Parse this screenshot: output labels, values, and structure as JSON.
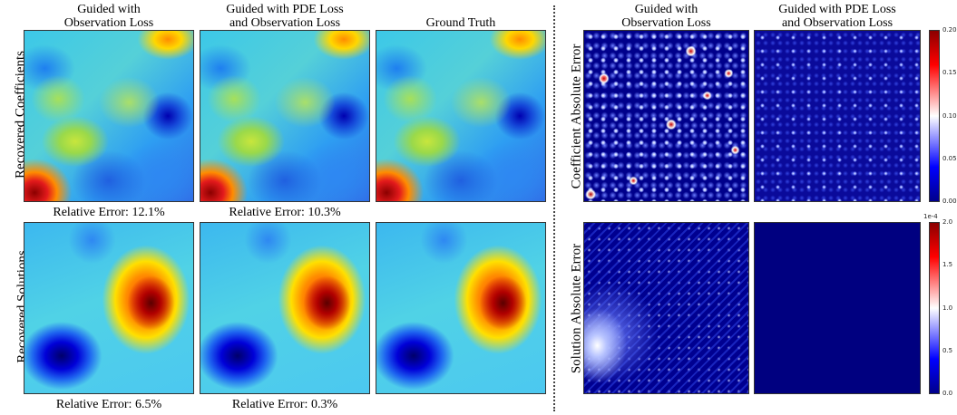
{
  "left_columns": [
    {
      "title_line1": "Guided with",
      "title_line2": "Observation Loss"
    },
    {
      "title_line1": "Guided with PDE Loss",
      "title_line2": "and Observation Loss"
    },
    {
      "title_line1": "Ground Truth",
      "title_line2": ""
    }
  ],
  "right_columns": [
    {
      "title_line1": "Guided with",
      "title_line2": "Observation Loss"
    },
    {
      "title_line1": "Guided with PDE Loss",
      "title_line2": "and Observation Loss"
    }
  ],
  "row_labels": {
    "coefficients": "Recovered Coefficients",
    "solutions": "Recovered Solutions",
    "coef_error": "Coefficient Absolute Error",
    "sol_error": "Solution Absolute Error"
  },
  "captions": {
    "coef_obs": "Relative Error: 12.1%",
    "coef_pde": "Relative Error: 10.3%",
    "sol_obs": "Relative Error: 6.5%",
    "sol_pde": "Relative Error: 0.3%"
  },
  "colorbars": {
    "coef_error": {
      "ticks": [
        "0.20",
        "0.15",
        "0.10",
        "0.05",
        "0.00"
      ],
      "range": [
        0.0,
        0.2
      ]
    },
    "sol_error": {
      "ticks": [
        "2.0",
        "1.5",
        "1.0",
        "0.5",
        "0.0"
      ],
      "range": [
        0.0,
        2.0
      ],
      "scale_label": "1e-4"
    }
  },
  "colormaps": {
    "fields": "jet",
    "errors": "seismic"
  }
}
